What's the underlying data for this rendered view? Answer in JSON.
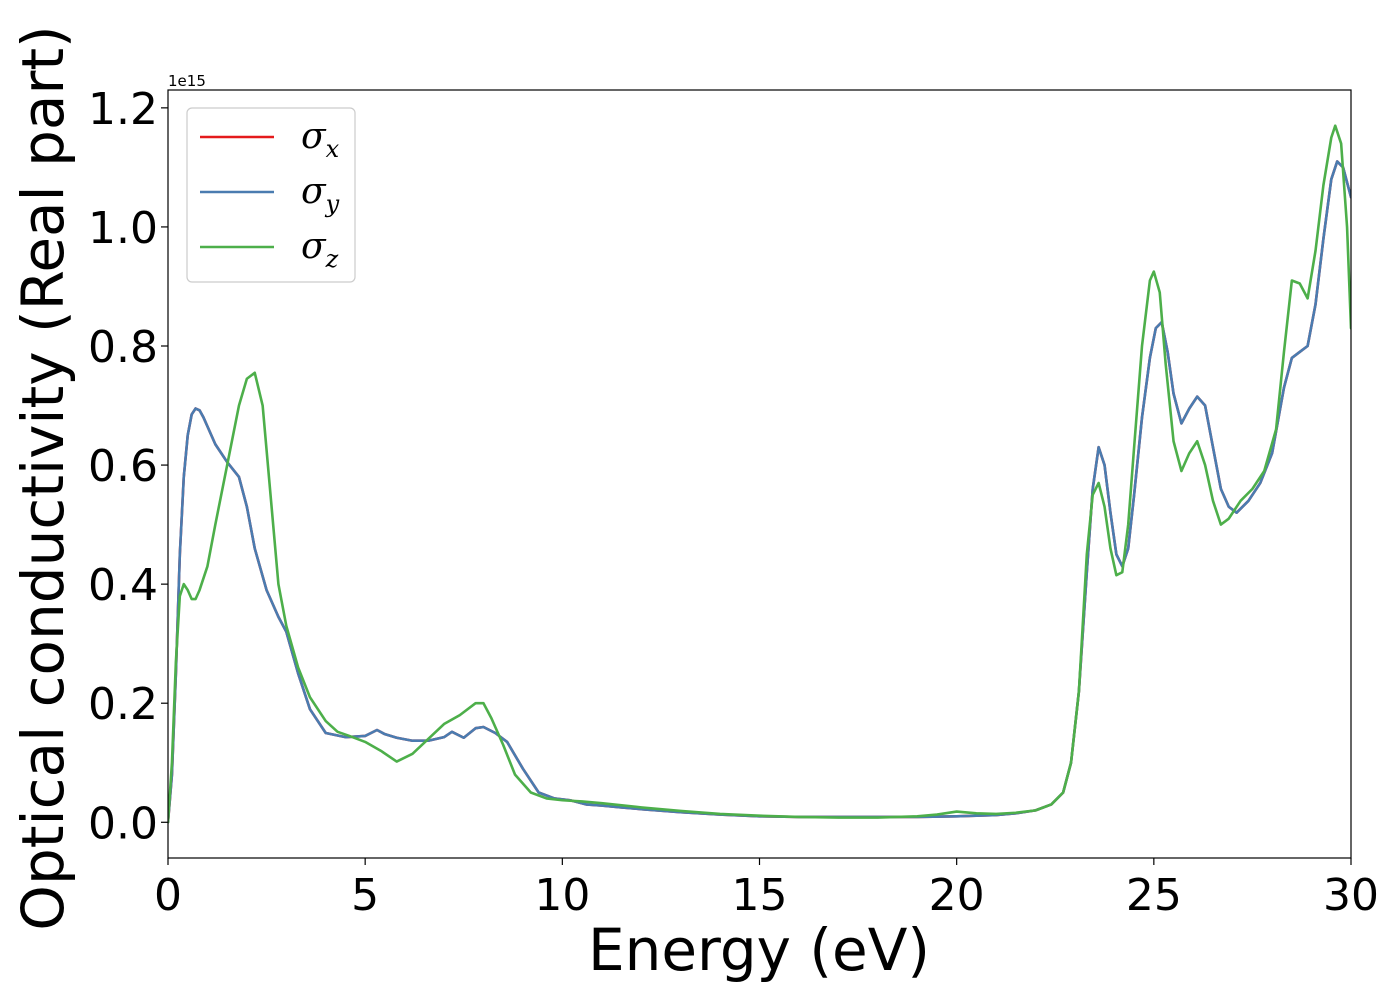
{
  "chart_data": {
    "type": "line",
    "title": "",
    "xlabel": "Energy (eV)",
    "ylabel": "Optical conductivity (Real part)",
    "y_offset_label": "1e15",
    "xlim": [
      0,
      30
    ],
    "ylim": [
      -0.06,
      1.23
    ],
    "xticks": [
      0,
      5,
      10,
      15,
      20,
      25,
      30
    ],
    "xtick_labels": [
      "0",
      "5",
      "10",
      "15",
      "20",
      "25",
      "30"
    ],
    "yticks": [
      0.0,
      0.2,
      0.4,
      0.6,
      0.8,
      1.0,
      1.2
    ],
    "ytick_labels": [
      "0.0",
      "0.2",
      "0.4",
      "0.6",
      "0.8",
      "1.0",
      "1.2"
    ],
    "grid": false,
    "legend_position": "top-left",
    "series": [
      {
        "name": "σx",
        "legend_base": "σ",
        "legend_sub": "x",
        "color": "#e41a1c",
        "x": [
          0,
          0.1,
          0.2,
          0.3,
          0.4,
          0.5,
          0.6,
          0.7,
          0.8,
          0.9,
          1.0,
          1.2,
          1.5,
          1.8,
          2.0,
          2.2,
          2.5,
          2.8,
          3.0,
          3.3,
          3.6,
          4.0,
          4.5,
          5.0,
          5.3,
          5.5,
          5.8,
          6.2,
          6.6,
          7.0,
          7.2,
          7.5,
          7.8,
          8.0,
          8.3,
          8.6,
          9.0,
          9.4,
          9.8,
          10.2,
          10.6,
          11.0,
          11.5,
          12.0,
          13.0,
          14.0,
          15.0,
          16.0,
          17.0,
          18.0,
          19.0,
          20.0,
          21.0,
          21.5,
          22.0,
          22.4,
          22.7,
          22.9,
          23.1,
          23.3,
          23.45,
          23.6,
          23.75,
          23.9,
          24.05,
          24.2,
          24.35,
          24.5,
          24.7,
          24.9,
          25.05,
          25.2,
          25.35,
          25.5,
          25.7,
          25.9,
          26.1,
          26.3,
          26.5,
          26.7,
          26.9,
          27.1,
          27.4,
          27.7,
          28.0,
          28.3,
          28.5,
          28.7,
          28.9,
          29.1,
          29.3,
          29.5,
          29.65,
          29.8,
          30.0
        ],
        "y": [
          0.0,
          0.08,
          0.25,
          0.45,
          0.58,
          0.65,
          0.685,
          0.695,
          0.692,
          0.68,
          0.665,
          0.635,
          0.605,
          0.58,
          0.53,
          0.46,
          0.39,
          0.345,
          0.32,
          0.25,
          0.19,
          0.15,
          0.143,
          0.145,
          0.155,
          0.148,
          0.142,
          0.137,
          0.137,
          0.143,
          0.152,
          0.142,
          0.158,
          0.16,
          0.15,
          0.135,
          0.09,
          0.05,
          0.04,
          0.037,
          0.03,
          0.028,
          0.025,
          0.022,
          0.017,
          0.013,
          0.01,
          0.009,
          0.009,
          0.009,
          0.009,
          0.01,
          0.012,
          0.015,
          0.02,
          0.03,
          0.05,
          0.1,
          0.22,
          0.42,
          0.56,
          0.63,
          0.6,
          0.52,
          0.45,
          0.43,
          0.46,
          0.55,
          0.68,
          0.78,
          0.83,
          0.84,
          0.79,
          0.72,
          0.67,
          0.695,
          0.715,
          0.7,
          0.63,
          0.56,
          0.53,
          0.52,
          0.54,
          0.57,
          0.62,
          0.73,
          0.78,
          0.79,
          0.8,
          0.87,
          0.98,
          1.08,
          1.11,
          1.1,
          1.05
        ]
      },
      {
        "name": "σy",
        "legend_base": "σ",
        "legend_sub": "y",
        "color": "#4a7cb0",
        "x": [
          0,
          0.1,
          0.2,
          0.3,
          0.4,
          0.5,
          0.6,
          0.7,
          0.8,
          0.9,
          1.0,
          1.2,
          1.5,
          1.8,
          2.0,
          2.2,
          2.5,
          2.8,
          3.0,
          3.3,
          3.6,
          4.0,
          4.5,
          5.0,
          5.3,
          5.5,
          5.8,
          6.2,
          6.6,
          7.0,
          7.2,
          7.5,
          7.8,
          8.0,
          8.3,
          8.6,
          9.0,
          9.4,
          9.8,
          10.2,
          10.6,
          11.0,
          11.5,
          12.0,
          13.0,
          14.0,
          15.0,
          16.0,
          17.0,
          18.0,
          19.0,
          20.0,
          21.0,
          21.5,
          22.0,
          22.4,
          22.7,
          22.9,
          23.1,
          23.3,
          23.45,
          23.6,
          23.75,
          23.9,
          24.05,
          24.2,
          24.35,
          24.5,
          24.7,
          24.9,
          25.05,
          25.2,
          25.35,
          25.5,
          25.7,
          25.9,
          26.1,
          26.3,
          26.5,
          26.7,
          26.9,
          27.1,
          27.4,
          27.7,
          28.0,
          28.3,
          28.5,
          28.7,
          28.9,
          29.1,
          29.3,
          29.5,
          29.65,
          29.8,
          30.0
        ],
        "y": [
          0.0,
          0.08,
          0.25,
          0.45,
          0.58,
          0.65,
          0.685,
          0.695,
          0.692,
          0.68,
          0.665,
          0.635,
          0.605,
          0.58,
          0.53,
          0.46,
          0.39,
          0.345,
          0.32,
          0.25,
          0.19,
          0.15,
          0.143,
          0.145,
          0.155,
          0.148,
          0.142,
          0.137,
          0.137,
          0.143,
          0.152,
          0.142,
          0.158,
          0.16,
          0.15,
          0.135,
          0.09,
          0.05,
          0.04,
          0.037,
          0.03,
          0.028,
          0.025,
          0.022,
          0.017,
          0.013,
          0.01,
          0.009,
          0.009,
          0.009,
          0.009,
          0.01,
          0.012,
          0.015,
          0.02,
          0.03,
          0.05,
          0.1,
          0.22,
          0.42,
          0.56,
          0.63,
          0.6,
          0.52,
          0.45,
          0.43,
          0.46,
          0.55,
          0.68,
          0.78,
          0.83,
          0.84,
          0.79,
          0.72,
          0.67,
          0.695,
          0.715,
          0.7,
          0.63,
          0.56,
          0.53,
          0.52,
          0.54,
          0.57,
          0.62,
          0.73,
          0.78,
          0.79,
          0.8,
          0.87,
          0.98,
          1.08,
          1.11,
          1.1,
          1.05
        ]
      },
      {
        "name": "σz",
        "legend_base": "σ",
        "legend_sub": "z",
        "color": "#4daf4a",
        "x": [
          0,
          0.1,
          0.2,
          0.3,
          0.4,
          0.5,
          0.6,
          0.7,
          0.8,
          1.0,
          1.2,
          1.5,
          1.8,
          2.0,
          2.2,
          2.4,
          2.6,
          2.8,
          3.0,
          3.3,
          3.6,
          4.0,
          4.3,
          4.6,
          5.0,
          5.4,
          5.8,
          6.2,
          6.6,
          7.0,
          7.4,
          7.8,
          8.0,
          8.2,
          8.5,
          8.8,
          9.2,
          9.6,
          10.0,
          10.5,
          11.0,
          12.0,
          13.0,
          14.0,
          15.0,
          16.0,
          17.0,
          18.0,
          19.0,
          19.5,
          20.0,
          20.5,
          21.0,
          21.5,
          22.0,
          22.4,
          22.7,
          22.9,
          23.1,
          23.3,
          23.45,
          23.6,
          23.75,
          23.9,
          24.05,
          24.2,
          24.35,
          24.5,
          24.7,
          24.9,
          25.0,
          25.15,
          25.3,
          25.5,
          25.7,
          25.9,
          26.1,
          26.3,
          26.5,
          26.7,
          26.9,
          27.2,
          27.5,
          27.8,
          28.1,
          28.3,
          28.5,
          28.7,
          28.9,
          29.1,
          29.3,
          29.5,
          29.6,
          29.75,
          29.9,
          30.0
        ],
        "y": [
          0.0,
          0.1,
          0.27,
          0.38,
          0.4,
          0.39,
          0.375,
          0.375,
          0.39,
          0.43,
          0.5,
          0.6,
          0.7,
          0.745,
          0.755,
          0.7,
          0.55,
          0.4,
          0.33,
          0.26,
          0.21,
          0.17,
          0.152,
          0.145,
          0.135,
          0.12,
          0.102,
          0.115,
          0.14,
          0.165,
          0.18,
          0.2,
          0.2,
          0.175,
          0.13,
          0.08,
          0.05,
          0.04,
          0.037,
          0.035,
          0.032,
          0.025,
          0.019,
          0.014,
          0.011,
          0.009,
          0.008,
          0.008,
          0.01,
          0.013,
          0.018,
          0.015,
          0.014,
          0.016,
          0.02,
          0.03,
          0.05,
          0.1,
          0.22,
          0.45,
          0.55,
          0.57,
          0.53,
          0.46,
          0.415,
          0.42,
          0.5,
          0.63,
          0.8,
          0.91,
          0.925,
          0.89,
          0.77,
          0.64,
          0.59,
          0.62,
          0.64,
          0.6,
          0.54,
          0.5,
          0.51,
          0.54,
          0.56,
          0.59,
          0.66,
          0.79,
          0.91,
          0.905,
          0.88,
          0.96,
          1.07,
          1.15,
          1.17,
          1.14,
          1.0,
          0.83
        ]
      }
    ]
  }
}
